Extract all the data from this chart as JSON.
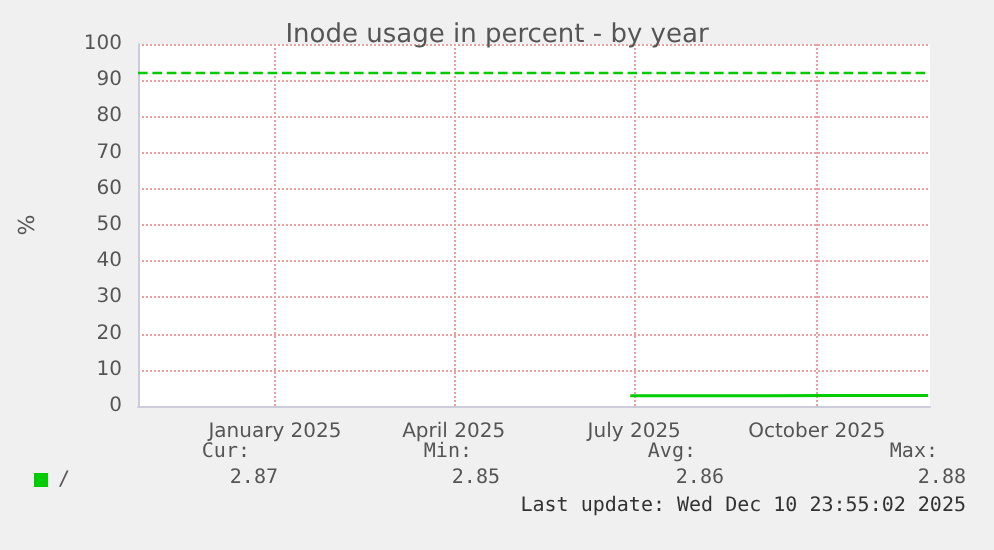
{
  "chart_data": {
    "type": "line",
    "title": "Inode usage in percent - by year",
    "ylabel": "%",
    "x": [
      "2025-07-13",
      "2025-08-15",
      "2025-09-20",
      "2025-10-25",
      "2025-11-20",
      "2025-12-10"
    ],
    "series": [
      {
        "name": "/",
        "color": "#00cc00",
        "values": [
          2.85,
          2.86,
          2.86,
          2.87,
          2.88,
          2.87
        ]
      }
    ],
    "xlim": [
      "2024-11-07",
      "2025-12-11"
    ],
    "xticks": [
      {
        "value": "2025-01-15",
        "label": "January 2025"
      },
      {
        "value": "2025-04-15",
        "label": "April 2025"
      },
      {
        "value": "2025-07-15",
        "label": "July 2025"
      },
      {
        "value": "2025-10-15",
        "label": "October 2025"
      }
    ],
    "ylim": [
      0,
      100
    ],
    "yticks": [
      0,
      10,
      20,
      30,
      40,
      50,
      60,
      70,
      80,
      90,
      100
    ],
    "ref_lines": [
      {
        "axis": "y",
        "value": 92,
        "label": null,
        "color": "#00cc00",
        "line_style": "dashed"
      }
    ],
    "annotations": [
      "Cur:",
      "Min:",
      "Avg:",
      "Max:",
      "2.87",
      "2.85",
      "2.86",
      "2.88",
      "Last update: Wed Dec 10 23:55:02 2025"
    ],
    "grid": true,
    "legend": "bottom left",
    "marker": "none",
    "line_style": "solid"
  }
}
